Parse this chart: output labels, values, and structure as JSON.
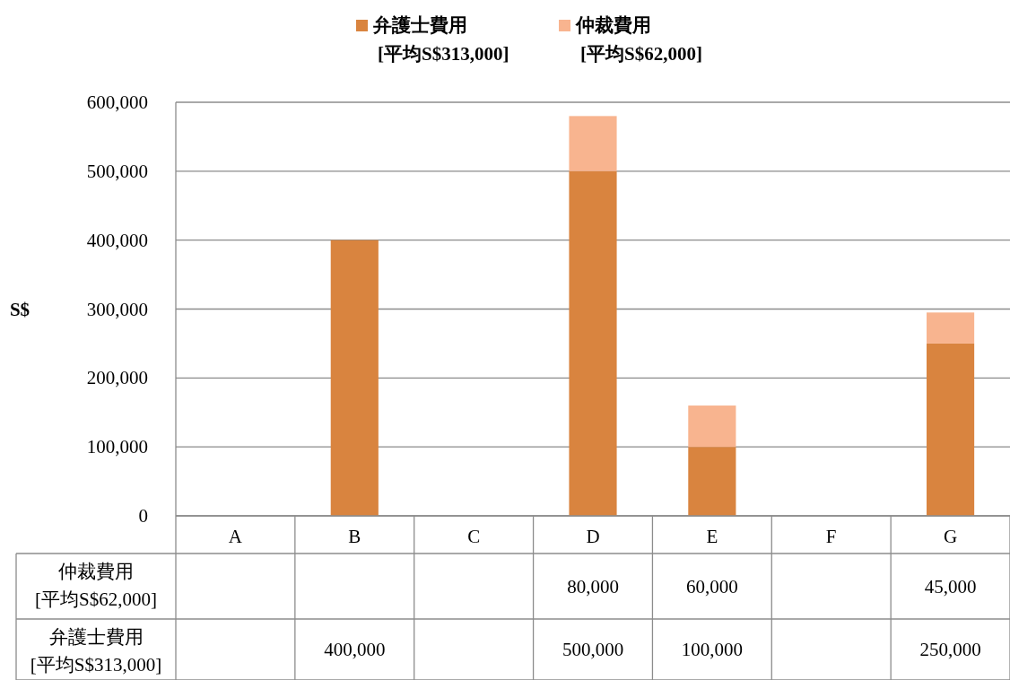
{
  "chart_data": {
    "type": "bar",
    "stacked": true,
    "ylabel": "S$",
    "categories": [
      "A",
      "B",
      "C",
      "D",
      "E",
      "F",
      "G"
    ],
    "series": [
      {
        "name": "弁護士費用 [平均S$313,000]",
        "color": "#d9843f",
        "values": [
          null,
          400000,
          null,
          500000,
          100000,
          null,
          250000
        ],
        "value_labels": [
          null,
          "400,000",
          null,
          "500,000",
          "100,000",
          null,
          "250,000"
        ]
      },
      {
        "name": "仲裁費用 [平均S$62,000]",
        "color": "#f8b48f",
        "values": [
          null,
          null,
          null,
          80000,
          60000,
          null,
          45000
        ],
        "value_labels": [
          null,
          null,
          null,
          "80,000",
          "60,000",
          null,
          "45,000"
        ]
      }
    ],
    "ylim": [
      0,
      600000
    ],
    "yticks": [
      0,
      {
        "value": 100000,
        "label": "100,000"
      },
      {
        "value": 200000,
        "label": "200,000"
      },
      {
        "value": 300000,
        "label": "300,000"
      },
      {
        "value": 400000,
        "label": "400,000"
      },
      {
        "value": 500000,
        "label": "500,000"
      },
      {
        "value": 600000,
        "label": "600,000"
      }
    ],
    "grid": "y",
    "legend": "top"
  }
}
